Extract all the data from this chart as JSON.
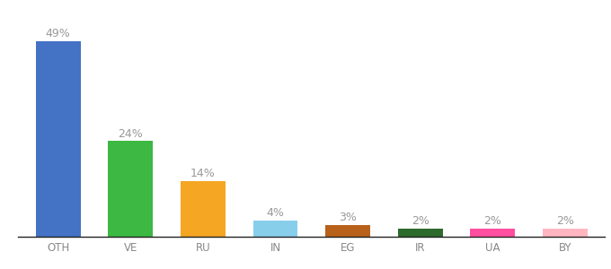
{
  "categories": [
    "OTH",
    "VE",
    "RU",
    "IN",
    "EG",
    "IR",
    "UA",
    "BY"
  ],
  "values": [
    49,
    24,
    14,
    4,
    3,
    2,
    2,
    2
  ],
  "bar_colors": [
    "#4472c4",
    "#3cb843",
    "#f5a623",
    "#87ceeb",
    "#b8611a",
    "#2d6b2d",
    "#ff4fa0",
    "#ffb6c1"
  ],
  "ylim": [
    0,
    54
  ],
  "label_color": "#999999",
  "label_fontsize": 9,
  "tick_fontsize": 8.5,
  "tick_color": "#888888",
  "background_color": "#ffffff",
  "bar_width": 0.62,
  "bottom_spine_color": "#222222"
}
